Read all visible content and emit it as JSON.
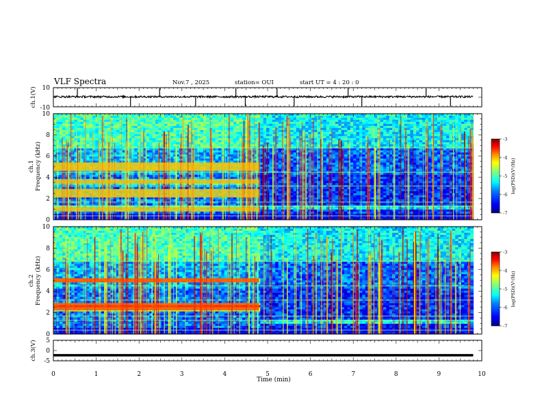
{
  "header": {
    "title": "VLF Spectra",
    "date": "Nov.7 , 2025",
    "station_label": "station= OUI",
    "start_label": "start UT = 4 : 20 : 0"
  },
  "colors": {
    "background": "#ffffff",
    "axis": "#000000",
    "colormap": [
      "#00007f",
      "#0000ff",
      "#007fff",
      "#00ffff",
      "#7fff7f",
      "#ffff00",
      "#ff7f00",
      "#ff0000",
      "#7f0000"
    ]
  },
  "chart_data": [
    {
      "type": "line",
      "name": "ch1-waveform",
      "ylabel": "ch.1(V)",
      "ylim": [
        -10,
        10
      ],
      "yticks": [
        "10",
        "-10"
      ],
      "xlim": [
        0,
        10
      ],
      "baseline_v": 0.5,
      "noise_amplitude_v": 1.0,
      "spikes_min": [
        0.56,
        1.8,
        2.48,
        3.32,
        4.26,
        4.48,
        5.22,
        5.62,
        6.88,
        7.2,
        8.7,
        9.27
      ],
      "x_end_min": 9.8
    },
    {
      "type": "heatmap",
      "name": "ch1-spectrogram",
      "ylabel": "Frequency (kHz)",
      "channel_label": "ch.1",
      "ylim": [
        0,
        10
      ],
      "yticks": [
        "0",
        "2",
        "4",
        "6",
        "8",
        "10"
      ],
      "xlim": [
        0,
        10
      ],
      "x_end_min": 9.8,
      "colorbar": {
        "label": "log(PSD)(V²/Hz)",
        "range": [
          -7,
          -3
        ],
        "ticks": [
          "-3",
          "-4",
          "-5",
          "-6",
          "-7"
        ]
      },
      "bands_before_4.8min_khz": [
        1.0,
        2.3,
        2.7,
        3.6,
        4.8,
        5.2
      ],
      "band_change_min": 4.8
    },
    {
      "type": "heatmap",
      "name": "ch2-spectrogram",
      "ylabel": "Frequency (kHz)",
      "channel_label": "ch.2",
      "ylim": [
        0,
        10
      ],
      "yticks": [
        "0",
        "2",
        "4",
        "6",
        "8",
        "10"
      ],
      "xlim": [
        0,
        10
      ],
      "x_end_min": 9.8,
      "colorbar": {
        "label": "log(PSD)(V²/Hz)",
        "range": [
          -7,
          -3
        ],
        "ticks": [
          "-3",
          "-4",
          "-5",
          "-6",
          "-7"
        ]
      },
      "bands_before_4.8min_khz": [
        2.4,
        2.7,
        5.0
      ],
      "band_change_min": 4.8
    },
    {
      "type": "line",
      "name": "ch3-waveform",
      "ylabel": "ch.3(V)",
      "ylim": [
        -5,
        5
      ],
      "yticks": [
        "5",
        "0",
        "-5"
      ],
      "xlim": [
        0,
        10
      ],
      "baseline_v": -2.3,
      "x_end_min": 9.8
    }
  ],
  "x_axis": {
    "label": "Time (min)",
    "ticks": [
      "0",
      "1",
      "2",
      "3",
      "4",
      "5",
      "6",
      "7",
      "8",
      "9",
      "10"
    ]
  }
}
